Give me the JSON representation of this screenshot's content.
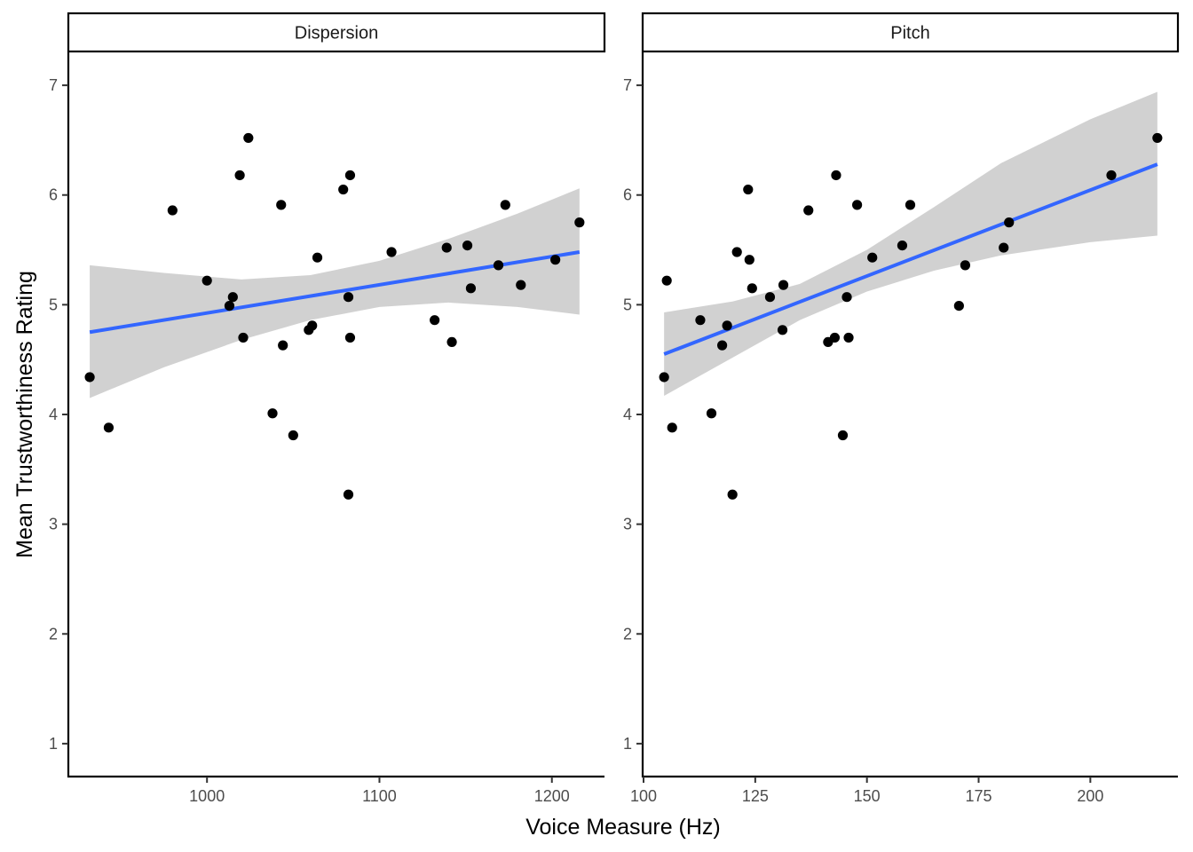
{
  "chart_data": {
    "type": "scatter",
    "xlabel": "Voice Measure (Hz)",
    "ylabel": "Mean Trustworthiness Rating",
    "ylim": [
      0.7,
      7.3
    ],
    "yticks": [
      1,
      2,
      3,
      4,
      5,
      6,
      7
    ],
    "grid": false,
    "colors": {
      "points": "#000000",
      "fit_line": "#3366FF",
      "ribbon": "#CCCCCC",
      "axis": "#000000"
    },
    "panels": [
      {
        "name": "Dispersion",
        "xlim": [
          919.6,
          1230.5
        ],
        "xticks": [
          1000,
          1100,
          1200
        ],
        "fit": {
          "x": [
            932,
            1216
          ],
          "y": [
            4.75,
            5.48
          ]
        },
        "ribbon": [
          {
            "x": 932,
            "lo": 4.15,
            "hi": 5.36
          },
          {
            "x": 975,
            "lo": 4.43,
            "hi": 5.29
          },
          {
            "x": 1020,
            "lo": 4.68,
            "hi": 5.23
          },
          {
            "x": 1060,
            "lo": 4.86,
            "hi": 5.27
          },
          {
            "x": 1100,
            "lo": 4.98,
            "hi": 5.4
          },
          {
            "x": 1140,
            "lo": 5.02,
            "hi": 5.6
          },
          {
            "x": 1180,
            "lo": 4.98,
            "hi": 5.83
          },
          {
            "x": 1216,
            "lo": 4.91,
            "hi": 6.06
          }
        ],
        "points": [
          {
            "x": 932,
            "y": 4.34
          },
          {
            "x": 943,
            "y": 3.88
          },
          {
            "x": 980,
            "y": 5.86
          },
          {
            "x": 1000,
            "y": 5.22
          },
          {
            "x": 1013,
            "y": 4.99
          },
          {
            "x": 1015,
            "y": 5.07
          },
          {
            "x": 1019,
            "y": 6.18
          },
          {
            "x": 1021,
            "y": 4.7
          },
          {
            "x": 1024,
            "y": 6.52
          },
          {
            "x": 1038,
            "y": 4.01
          },
          {
            "x": 1043,
            "y": 5.91
          },
          {
            "x": 1044,
            "y": 4.63
          },
          {
            "x": 1050,
            "y": 3.81
          },
          {
            "x": 1059,
            "y": 4.77
          },
          {
            "x": 1061,
            "y": 4.81
          },
          {
            "x": 1064,
            "y": 5.43
          },
          {
            "x": 1079,
            "y": 6.05
          },
          {
            "x": 1082,
            "y": 5.07
          },
          {
            "x": 1082,
            "y": 3.27
          },
          {
            "x": 1083,
            "y": 6.18
          },
          {
            "x": 1083,
            "y": 4.7
          },
          {
            "x": 1107,
            "y": 5.48
          },
          {
            "x": 1132,
            "y": 4.86
          },
          {
            "x": 1139,
            "y": 5.52
          },
          {
            "x": 1142,
            "y": 4.66
          },
          {
            "x": 1151,
            "y": 5.54
          },
          {
            "x": 1153,
            "y": 5.15
          },
          {
            "x": 1169,
            "y": 5.36
          },
          {
            "x": 1173,
            "y": 5.91
          },
          {
            "x": 1182,
            "y": 5.18
          },
          {
            "x": 1202,
            "y": 5.41
          },
          {
            "x": 1216,
            "y": 5.75
          }
        ]
      },
      {
        "name": "Pitch",
        "xlim": [
          99.8,
          219.6
        ],
        "xticks": [
          100,
          125,
          150,
          175,
          200
        ],
        "fit": {
          "x": [
            104.6,
            215.0
          ],
          "y": [
            4.55,
            6.28
          ]
        },
        "ribbon": [
          {
            "x": 104.6,
            "lo": 4.17,
            "hi": 4.93
          },
          {
            "x": 120,
            "lo": 4.52,
            "hi": 5.03
          },
          {
            "x": 135,
            "lo": 4.86,
            "hi": 5.19
          },
          {
            "x": 150,
            "lo": 5.12,
            "hi": 5.5
          },
          {
            "x": 165,
            "lo": 5.31,
            "hi": 5.89
          },
          {
            "x": 180,
            "lo": 5.45,
            "hi": 6.29
          },
          {
            "x": 200,
            "lo": 5.57,
            "hi": 6.69
          },
          {
            "x": 215,
            "lo": 5.63,
            "hi": 6.94
          }
        ],
        "points": [
          {
            "x": 104.6,
            "y": 4.34
          },
          {
            "x": 105.2,
            "y": 5.22
          },
          {
            "x": 106.4,
            "y": 3.88
          },
          {
            "x": 112.7,
            "y": 4.86
          },
          {
            "x": 115.2,
            "y": 4.01
          },
          {
            "x": 117.6,
            "y": 4.63
          },
          {
            "x": 118.7,
            "y": 4.81
          },
          {
            "x": 119.9,
            "y": 3.27
          },
          {
            "x": 120.9,
            "y": 5.48
          },
          {
            "x": 123.4,
            "y": 6.05
          },
          {
            "x": 123.7,
            "y": 5.41
          },
          {
            "x": 124.3,
            "y": 5.15
          },
          {
            "x": 128.3,
            "y": 5.07
          },
          {
            "x": 131.1,
            "y": 4.77
          },
          {
            "x": 131.3,
            "y": 5.18
          },
          {
            "x": 136.9,
            "y": 5.86
          },
          {
            "x": 141.3,
            "y": 4.66
          },
          {
            "x": 142.8,
            "y": 4.7
          },
          {
            "x": 143.1,
            "y": 6.18
          },
          {
            "x": 144.6,
            "y": 3.81
          },
          {
            "x": 145.5,
            "y": 5.07
          },
          {
            "x": 145.9,
            "y": 4.7
          },
          {
            "x": 147.8,
            "y": 5.91
          },
          {
            "x": 151.2,
            "y": 5.43
          },
          {
            "x": 157.9,
            "y": 5.54
          },
          {
            "x": 159.7,
            "y": 5.91
          },
          {
            "x": 170.6,
            "y": 4.99
          },
          {
            "x": 172.0,
            "y": 5.36
          },
          {
            "x": 180.6,
            "y": 5.52
          },
          {
            "x": 181.8,
            "y": 5.75
          },
          {
            "x": 204.7,
            "y": 6.18
          },
          {
            "x": 215.0,
            "y": 6.52
          }
        ]
      }
    ]
  }
}
